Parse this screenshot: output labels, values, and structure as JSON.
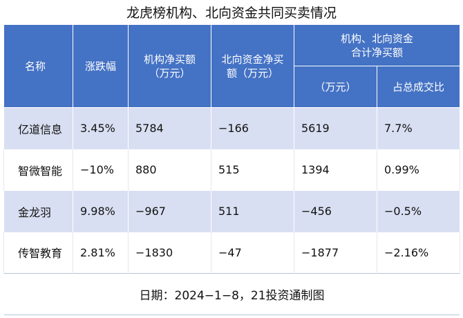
{
  "title": "龙虎榜机构、北向资金共同买卖情况",
  "headers": {
    "name": "名称",
    "change": "涨跌幅",
    "inst_net_line1": "机构净买额",
    "inst_net_line2": "（万元）",
    "north_net_line1": "北向资金净买",
    "north_net_line2": "额（万元）",
    "combined_line1": "机构、北向资金",
    "combined_line2": "合计净买额",
    "combined_unit": "（万元）",
    "share_of_turnover": "占总成交比"
  },
  "rows": [
    {
      "name": "亿道信息",
      "change": "3.45%",
      "inst_net": "5784",
      "north_net": "−166",
      "combined": "5619",
      "ratio": "7.7%"
    },
    {
      "name": "智微智能",
      "change": "−10%",
      "inst_net": "880",
      "north_net": "515",
      "combined": "1394",
      "ratio": "0.99%"
    },
    {
      "name": "金龙羽",
      "change": "9.98%",
      "inst_net": "−967",
      "north_net": "511",
      "combined": "−456",
      "ratio": "−0.5%"
    },
    {
      "name": "传智教育",
      "change": "2.81%",
      "inst_net": "−1830",
      "north_net": "−47",
      "combined": "−1877",
      "ratio": "−2.16%"
    }
  ],
  "footer": "日期：2024−1−8，21投资通制图"
}
